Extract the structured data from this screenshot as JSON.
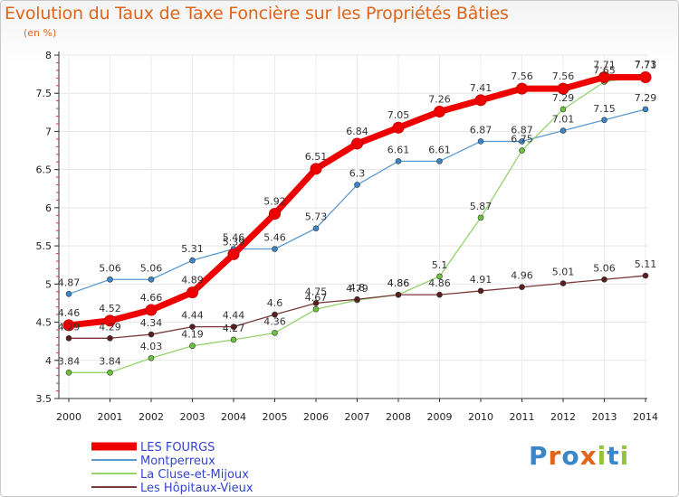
{
  "chart_data": {
    "type": "line",
    "title": "Evolution du Taux de Taxe Foncière sur les Propriétés Bâties",
    "unit_label": "(en %)",
    "xlabel": "",
    "ylabel": "",
    "x": [
      "2000",
      "2001",
      "2002",
      "2003",
      "2004",
      "2005",
      "2006",
      "2007",
      "2008",
      "2009",
      "2010",
      "2011",
      "2012",
      "2013",
      "2014"
    ],
    "ylim": [
      3.5,
      8
    ],
    "yticks": [
      "3.5",
      "4",
      "4.5",
      "5",
      "5.5",
      "6",
      "6.5",
      "7",
      "7.5",
      "8"
    ],
    "legend_position": "bottom-left",
    "series": [
      {
        "name": "Montperreux",
        "color": "#5b9ad0",
        "marker": "#3a86c8",
        "values": [
          4.87,
          5.06,
          5.06,
          5.31,
          5.46,
          5.46,
          5.73,
          6.3,
          6.61,
          6.61,
          6.87,
          6.87,
          7.01,
          7.15,
          7.29
        ],
        "labels": [
          "4.87",
          "5.06",
          "5.06",
          "5.31",
          "5.46",
          "5.46",
          "5.73",
          "6.3",
          "6.61",
          "6.61",
          "6.87",
          "6.87",
          "7.01",
          "7.15",
          "7.29"
        ]
      },
      {
        "name": "La Cluse-et-Mijoux",
        "color": "#94d36e",
        "marker": "#6ac33a",
        "values": [
          3.84,
          3.84,
          4.03,
          4.19,
          4.27,
          4.36,
          4.67,
          4.79,
          4.86,
          5.1,
          5.87,
          6.75,
          7.29,
          7.65,
          7.73
        ],
        "labels": [
          "3.84",
          "3.84",
          "4.03",
          "4.19",
          "4.27",
          "4.36",
          "4.67",
          "4.79",
          "4.86",
          "5.1",
          "5.87",
          "6.75",
          "7.29",
          "7.65",
          "7.73"
        ]
      },
      {
        "name": "Les Hôpitaux-Vieux",
        "color": "#7a3a3a",
        "marker": "#5a1e1e",
        "values": [
          4.29,
          4.29,
          4.34,
          4.44,
          4.44,
          4.6,
          4.75,
          4.8,
          4.86,
          4.86,
          4.91,
          4.96,
          5.01,
          5.06,
          5.11
        ],
        "labels": [
          "4.29",
          "4.29",
          "4.34",
          "4.44",
          "4.44",
          "4.6",
          "4.75",
          "4.8",
          "4.86",
          "4.86",
          "4.91",
          "4.96",
          "5.01",
          "5.06",
          "5.11"
        ]
      },
      {
        "name": "LES FOURGS",
        "color": "#ee0000",
        "marker": "#ee0000",
        "values": [
          4.46,
          4.52,
          4.66,
          4.89,
          5.39,
          5.92,
          6.51,
          6.84,
          7.05,
          7.26,
          7.41,
          7.56,
          7.56,
          7.71,
          7.71
        ],
        "labels": [
          "4.46",
          "4.52",
          "4.66",
          "4.89",
          "5.39",
          "5.92",
          "6.51",
          "6.84",
          "7.05",
          "7.26",
          "7.41",
          "7.56",
          "7.56",
          "7.71",
          "7.71"
        ]
      }
    ]
  },
  "branding": {
    "logo_text": "Proxiti"
  }
}
